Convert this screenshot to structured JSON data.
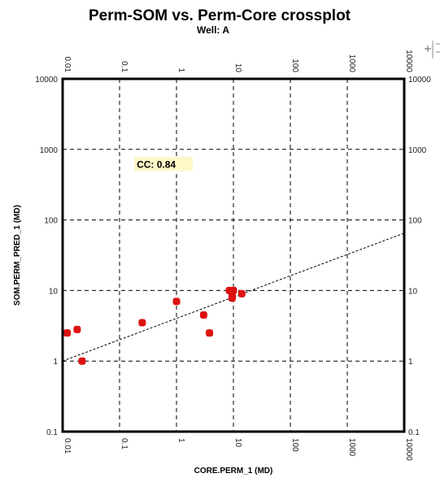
{
  "chart_data": {
    "type": "scatter",
    "title": "Perm-SOM vs. Perm-Core crossplot",
    "subtitle": "Well: A",
    "xlabel": "CORE.PERM_1 (MD)",
    "ylabel": "SOM.PERM_PRED_1 (MD)",
    "x_scale": "log",
    "y_scale": "log",
    "xlim": [
      0.01,
      10000
    ],
    "ylim": [
      0.1,
      10000
    ],
    "grid": true,
    "x_ticks_bottom": [
      {
        "value": 0.01,
        "label": "0.01"
      },
      {
        "value": 0.1,
        "label": "0.1"
      },
      {
        "value": 1,
        "label": "1"
      },
      {
        "value": 10,
        "label": "10"
      },
      {
        "value": 100,
        "label": "100"
      },
      {
        "value": 1000,
        "label": "1000"
      },
      {
        "value": 10000,
        "label": "10000"
      }
    ],
    "x_ticks_top": [
      {
        "value": 0.01,
        "label": "0.01"
      },
      {
        "value": 0.1,
        "label": "0.1"
      },
      {
        "value": 1,
        "label": "1"
      },
      {
        "value": 10,
        "label": "10"
      },
      {
        "value": 100,
        "label": "100"
      },
      {
        "value": 1000,
        "label": "1000"
      },
      {
        "value": 10000,
        "label": "10000"
      }
    ],
    "y_ticks_left": [
      {
        "value": 0.1,
        "label": "0.1"
      },
      {
        "value": 1,
        "label": "1"
      },
      {
        "value": 10,
        "label": "10"
      },
      {
        "value": 100,
        "label": "100"
      },
      {
        "value": 1000,
        "label": "1000"
      },
      {
        "value": 10000,
        "label": "10000"
      }
    ],
    "y_ticks_right": [
      {
        "value": 0.1,
        "label": "0.1"
      },
      {
        "value": 1,
        "label": "1"
      },
      {
        "value": 10,
        "label": "10"
      },
      {
        "value": 100,
        "label": "100"
      },
      {
        "value": 1000,
        "label": "1000"
      },
      {
        "value": 10000,
        "label": "10000"
      }
    ],
    "points": [
      {
        "x": 0.012,
        "y": 2.5
      },
      {
        "x": 0.018,
        "y": 2.8
      },
      {
        "x": 0.022,
        "y": 1.0
      },
      {
        "x": 0.25,
        "y": 3.5
      },
      {
        "x": 1.0,
        "y": 7.0
      },
      {
        "x": 3.0,
        "y": 4.5
      },
      {
        "x": 3.8,
        "y": 2.5
      },
      {
        "x": 8.5,
        "y": 10.0
      },
      {
        "x": 9.5,
        "y": 8.5
      },
      {
        "x": 9.5,
        "y": 7.8
      },
      {
        "x": 10.0,
        "y": 10.0
      },
      {
        "x": 14.0,
        "y": 9.0
      }
    ],
    "fit_line": {
      "x": [
        0.01,
        10000
      ],
      "y": [
        1.0,
        65
      ]
    },
    "annotation": {
      "text": "CC: 0.84",
      "x": 0.2,
      "y": 590
    },
    "colors": {
      "point": "#dd1111",
      "fit_line": "#000000",
      "grid": "#000000",
      "annotation_bg": "#fff7c8"
    }
  }
}
